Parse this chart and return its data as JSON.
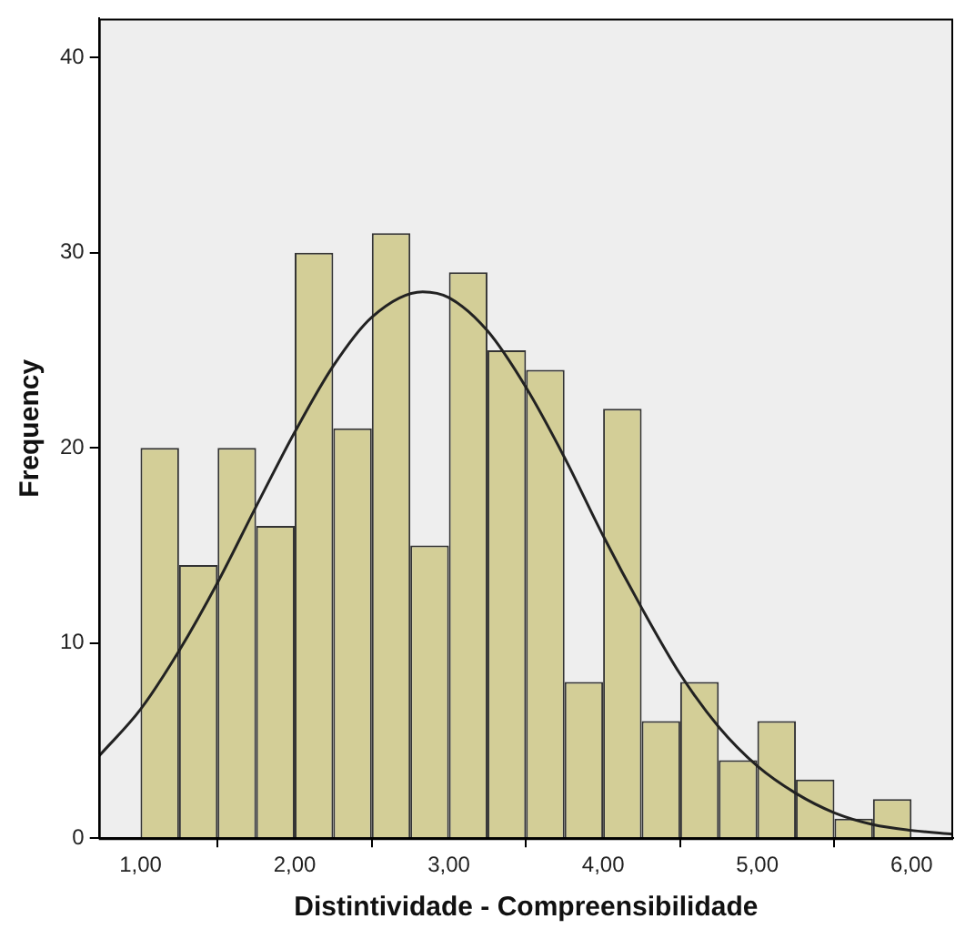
{
  "chart_data": {
    "type": "histogram",
    "xlabel": "Distintividade - Compreensibilidade",
    "ylabel": "Frequency",
    "bins": [
      1,
      1.25,
      1.5,
      1.75,
      2,
      2.25,
      2.5,
      2.75,
      3,
      3.25,
      3.5,
      3.75,
      4,
      4.25,
      4.5,
      4.75,
      5,
      5.25,
      5.5,
      5.75,
      6
    ],
    "values": [
      20,
      14,
      20,
      16,
      30,
      21,
      31,
      15,
      29,
      25,
      24,
      8,
      22,
      6,
      8,
      4,
      6,
      3,
      1,
      2
    ],
    "color": "#d3ce97",
    "series": [
      {
        "type": "line",
        "color": "#222222",
        "x": [
          0.73,
          1,
          1.25,
          1.5,
          1.75,
          2,
          2.25,
          2.5,
          2.83,
          3,
          3.25,
          3.5,
          3.75,
          4,
          4.25,
          4.5,
          4.75,
          5,
          5.25,
          5.5,
          5.75,
          6,
          6.27
        ],
        "values": [
          4.2,
          6.6,
          9.6,
          13.1,
          17.0,
          20.8,
          24.2,
          26.7,
          28,
          27.7,
          26.0,
          23.1,
          19.5,
          15.5,
          11.8,
          8.4,
          5.7,
          3.7,
          2.3,
          1.3,
          0.7,
          0.4,
          0.2
        ]
      }
    ],
    "xlim": [
      0.73,
      6.27
    ],
    "xticks": [
      {
        "value": 1,
        "label": "1,00"
      },
      {
        "value": 2,
        "label": "2,00"
      },
      {
        "value": 3,
        "label": "3,00"
      },
      {
        "value": 4,
        "label": "4,00"
      },
      {
        "value": 5,
        "label": "5,00"
      },
      {
        "value": 6,
        "label": "6,00"
      }
    ],
    "ylim": [
      0,
      42
    ],
    "yticks": [
      0,
      10,
      20,
      30,
      40
    ],
    "grid": false,
    "legend": false
  }
}
